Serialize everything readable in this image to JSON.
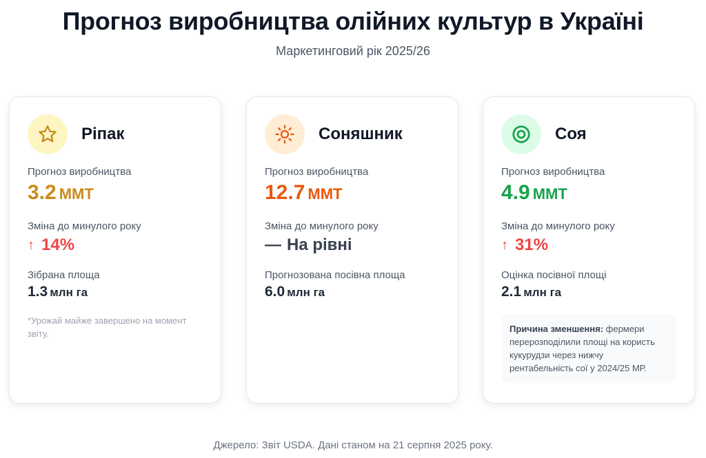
{
  "title": "Прогноз виробництва олійних культур в Україні",
  "subtitle": "Маркетинговий рік 2025/26",
  "cards": [
    {
      "name": "Ріпак",
      "icon": "star-icon",
      "icon_bg": "#fdf6c3",
      "accent": "#ca8a1a",
      "production_label": "Прогноз виробництва",
      "production_value": "3.2",
      "production_unit": "ММТ",
      "change_label": "Зміна до минулого року",
      "change_arrow": "↑",
      "change_value": "14%",
      "area_label": "Зібрана площа",
      "area_value": "1.3",
      "area_unit": "млн га",
      "note": "*Урожай майже завершено на момент звіту."
    },
    {
      "name": "Соняшник",
      "icon": "sun-icon",
      "icon_bg": "#ffedd5",
      "accent": "#ea580c",
      "production_label": "Прогноз виробництва",
      "production_value": "12.7",
      "production_unit": "ММТ",
      "change_label": "Зміна до минулого року",
      "change_arrow": "—",
      "change_value": "На рівні",
      "area_label": "Прогнозована посівна площа",
      "area_value": "6.0",
      "area_unit": "млн га"
    },
    {
      "name": "Соя",
      "icon": "target-icon",
      "icon_bg": "#dcfce7",
      "accent": "#16a34a",
      "production_label": "Прогноз виробництва",
      "production_value": "4.9",
      "production_unit": "ММТ",
      "change_label": "Зміна до минулого року",
      "change_arrow": "↑",
      "change_value": "31%",
      "area_label": "Оцінка посівної площі",
      "area_value": "2.1",
      "area_unit": "млн га",
      "reason_title": "Причина зменшення:",
      "reason_text": "фермери перерозподілили площі на користь кукурудзи через нижчу рентабельність сої у 2024/25 МР."
    }
  ],
  "source": "Джерело: Звіт USDA. Дані станом на 21 серпня 2025 року."
}
